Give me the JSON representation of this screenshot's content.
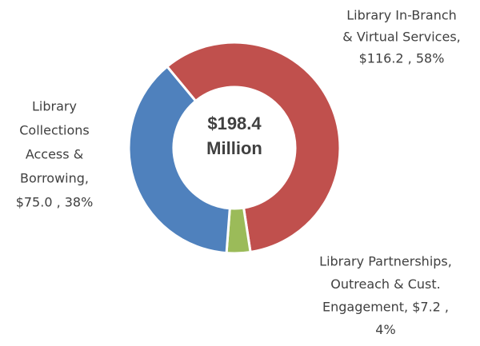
{
  "chart_data": {
    "type": "donut",
    "categories": [
      "Library In-Branch & Virtual Services",
      "Library Partnerships, Outreach & Cust. Engagement",
      "Library Collections Access & Borrowing"
    ],
    "values": [
      116.2,
      7.2,
      75.0
    ],
    "data_labels": [
      [
        "Library In-Branch",
        "& Virtual Services,",
        "$116.2 , 58%"
      ],
      [
        "Library Partnerships,",
        "Outreach & Cust.",
        "Engagement,  $7.2 ,",
        "4%"
      ],
      [
        "Library",
        "Collections",
        "Access &",
        "Borrowing,",
        "$75.0 , 38%"
      ]
    ],
    "colors": [
      "#c0504d",
      "#9bbb59",
      "#4f81bd"
    ],
    "center_label": [
      "$198.4",
      "Million"
    ]
  }
}
